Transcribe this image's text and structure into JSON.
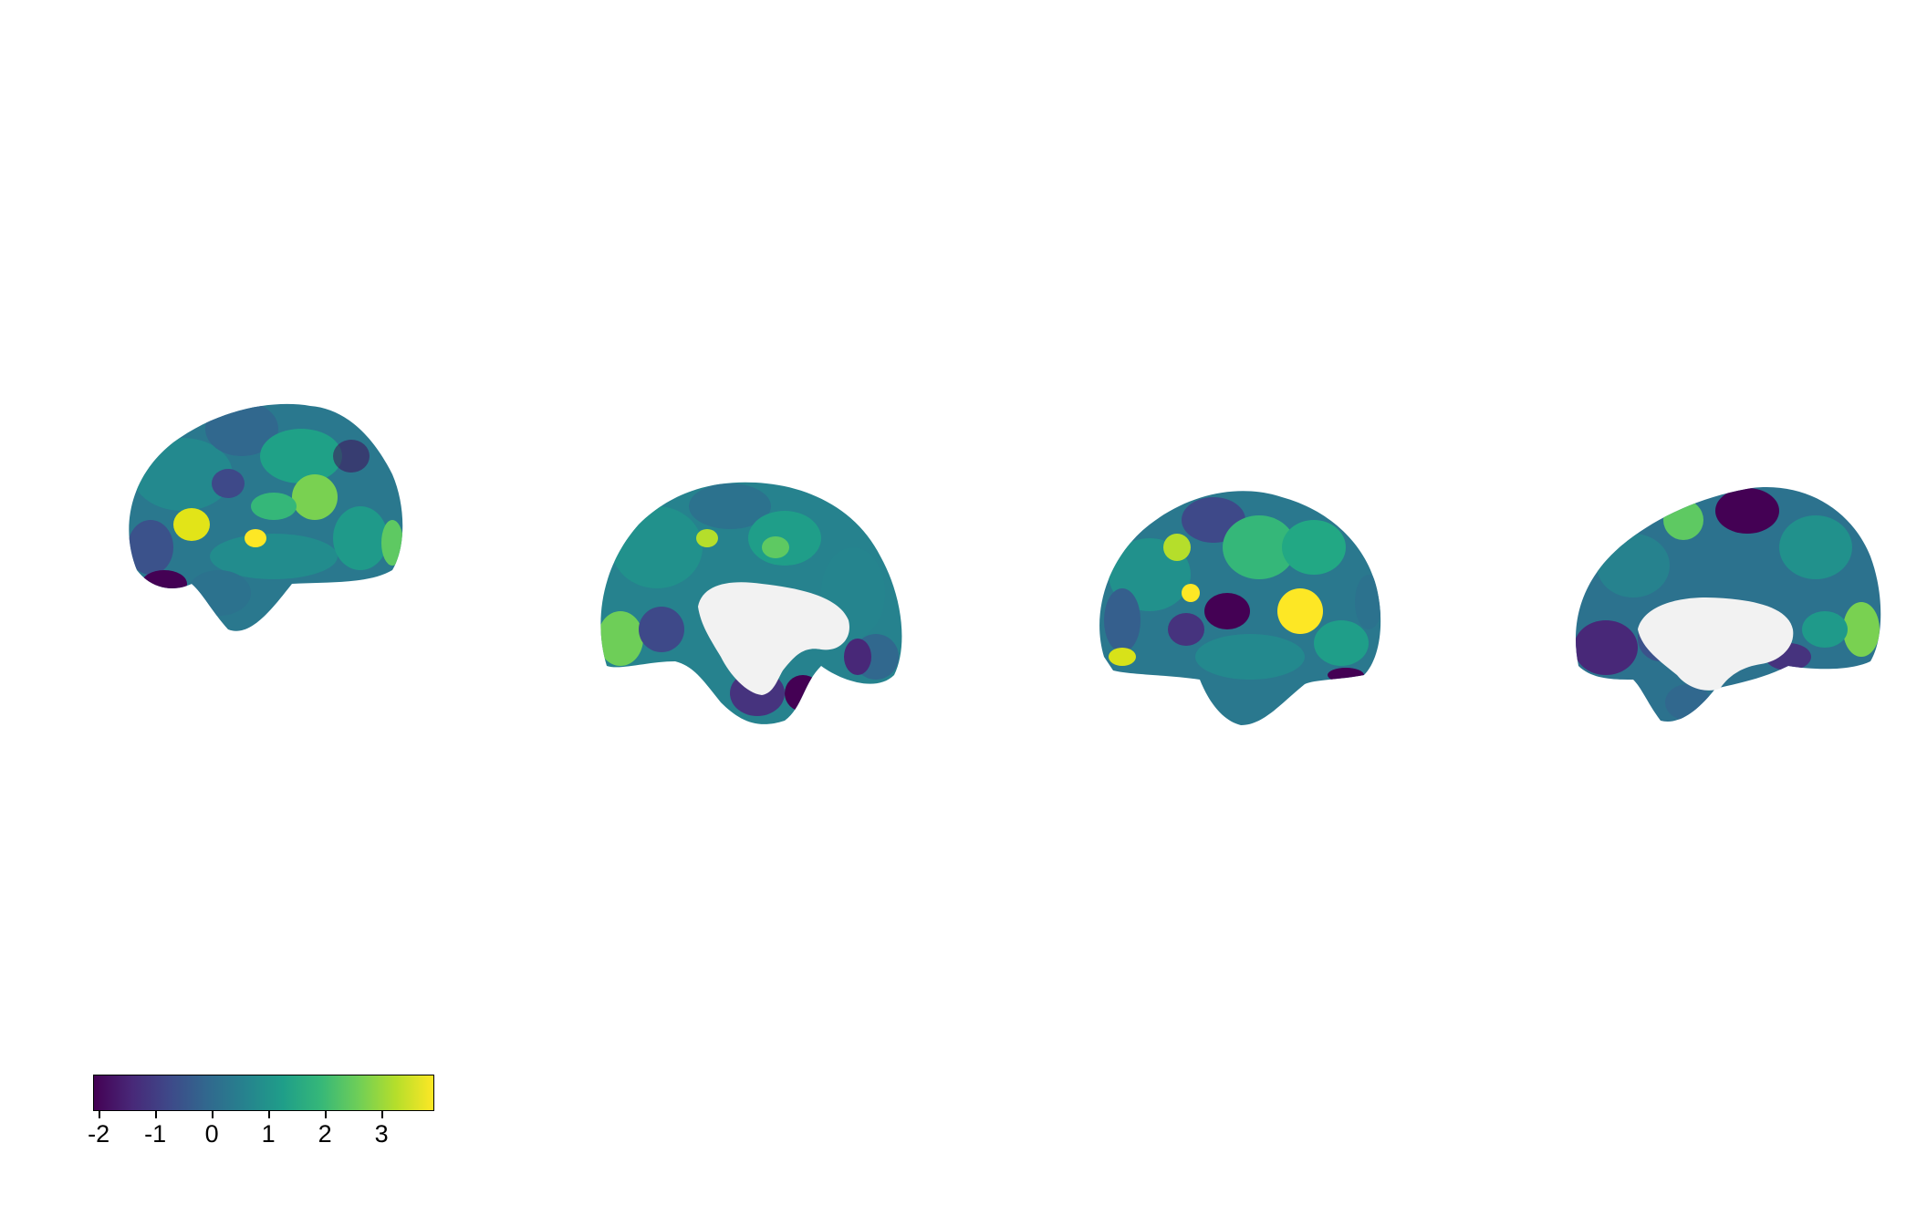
{
  "figure": {
    "views": [
      {
        "hemisphere": "left",
        "view": "lateral"
      },
      {
        "hemisphere": "left",
        "view": "medial"
      },
      {
        "hemisphere": "right",
        "view": "lateral"
      },
      {
        "hemisphere": "right",
        "view": "medial"
      }
    ],
    "colormap": "viridis",
    "colormap_stops": [
      "#440154",
      "#482878",
      "#3e4989",
      "#31688e",
      "#26828e",
      "#1f9e89",
      "#35b779",
      "#6ece58",
      "#b5de2b",
      "#fde725"
    ],
    "medial_wall_color": "#f2f2f2"
  },
  "colorbar": {
    "min": -2.1,
    "max": 3.9,
    "ticks": [
      {
        "value": -2,
        "label": "-2"
      },
      {
        "value": -1,
        "label": "-1"
      },
      {
        "value": 0,
        "label": "0"
      },
      {
        "value": 1,
        "label": "1"
      },
      {
        "value": 2,
        "label": "2"
      },
      {
        "value": 3,
        "label": "3"
      }
    ]
  }
}
